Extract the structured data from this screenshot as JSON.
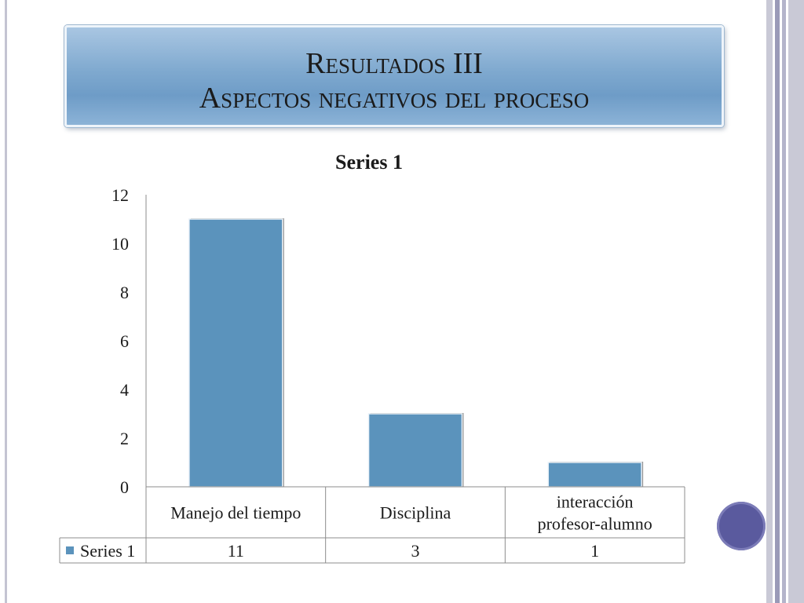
{
  "slide": {
    "title_line1": "Resultados III",
    "title_line2": "Aspectos negativos del proceso"
  },
  "colors": {
    "bar": "#5b93bc",
    "banner": "#7fa9cf",
    "decoration_circle": "#5a5a9e"
  },
  "chart_data": {
    "type": "bar",
    "title": "Series 1",
    "categories": [
      "Manejo del tiempo",
      "Disciplina",
      "interacción profesor-alumno"
    ],
    "category_lines": [
      [
        "Manejo del tiempo"
      ],
      [
        "Disciplina"
      ],
      [
        "interacción",
        "profesor-alumno"
      ]
    ],
    "series": [
      {
        "name": "Series 1",
        "values": [
          11,
          3,
          1
        ]
      }
    ],
    "yticks": [
      0,
      2,
      4,
      6,
      8,
      10,
      12
    ],
    "ylim": [
      0,
      12
    ],
    "xlabel": "",
    "ylabel": "",
    "legend": "data-table",
    "grid": false
  }
}
